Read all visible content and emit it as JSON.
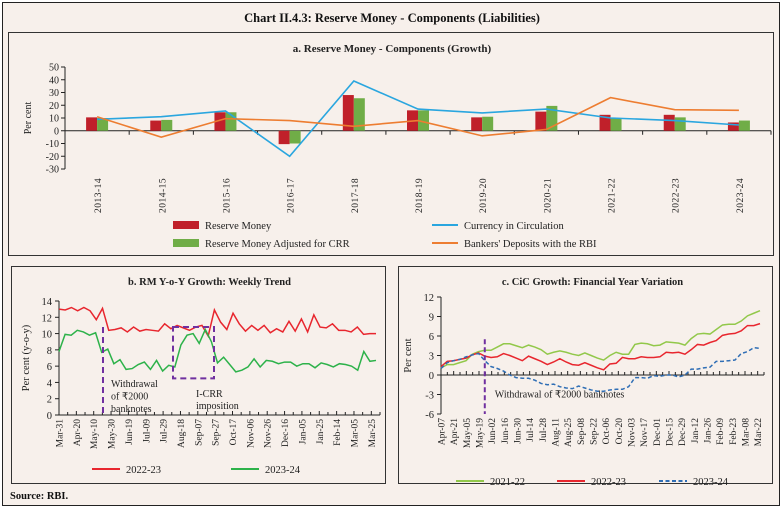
{
  "title": "Chart II.4.3: Reserve Money - Components (Liabilities)",
  "source": "Source: RBI.",
  "chart_data": [
    {
      "type": "bar",
      "title": "a. Reserve Money - Components (Growth)",
      "ylabel": "Per cent",
      "ylim": [
        -30,
        50
      ],
      "yticks": [
        -30,
        -20,
        -10,
        0,
        10,
        20,
        30,
        40,
        50
      ],
      "categories": [
        "2013-14",
        "2014-15",
        "2015-16",
        "2016-17",
        "2017-18",
        "2018-19",
        "2019-20",
        "2020-21",
        "2021-22",
        "2022-23",
        "2023-24"
      ],
      "series": [
        {
          "name": "Reserve Money",
          "kind": "bar",
          "color": "#c0202a",
          "values": [
            10.5,
            8.0,
            14.5,
            -10.5,
            28.0,
            16.0,
            10.5,
            15.0,
            12.5,
            12.5,
            6.5
          ]
        },
        {
          "name": "Reserve Money Adjusted for CRR",
          "kind": "bar",
          "color": "#70ad47",
          "values": [
            10.0,
            8.5,
            14.5,
            -10.0,
            25.5,
            16.0,
            11.0,
            19.5,
            10.0,
            10.5,
            8.0
          ]
        },
        {
          "name": "Currency in Circulation",
          "kind": "line",
          "color": "#2aa6df",
          "values": [
            9.0,
            11.0,
            15.5,
            -20.0,
            39.0,
            17.0,
            14.0,
            17.0,
            10.0,
            8.0,
            4.5
          ]
        },
        {
          "name": "Bankers' Deposits with the RBI",
          "kind": "line",
          "color": "#ed7d31",
          "values": [
            11.0,
            -5.0,
            9.5,
            8.0,
            3.5,
            8.0,
            -4.0,
            1.0,
            26.0,
            16.5,
            16.0
          ]
        }
      ],
      "legend": "bottom"
    },
    {
      "type": "line",
      "title": "b. RM Y-o-Y Growth: Weekly Trend",
      "ylabel": "Per cent (y-o-y)",
      "ylim": [
        0,
        14
      ],
      "yticks": [
        0,
        2,
        4,
        6,
        8,
        10,
        12,
        14
      ],
      "xticklabels": [
        "Mar-31",
        "Apr-20",
        "May-10",
        "May-30",
        "Jun-19",
        "Jul-09",
        "Jul-29",
        "Aug-18",
        "Sep-07",
        "Sep-27",
        "Oct-17",
        "Nov-06",
        "Nov-26",
        "Dec-16",
        "Jan-05",
        "Jan-25",
        "Feb-14",
        "Mar-05",
        "Mar-25"
      ],
      "series": [
        {
          "name": "2022-23",
          "color": "#e8262e",
          "dashed": false,
          "values": [
            13.0,
            12.9,
            13.2,
            12.8,
            13.2,
            12.8,
            11.7,
            13.1,
            10.4,
            10.5,
            10.7,
            10.2,
            10.8,
            10.3,
            10.5,
            10.4,
            10.3,
            11.2,
            10.6,
            11.0,
            10.7,
            10.4,
            10.8,
            11.0,
            9.7,
            12.9,
            11.4,
            10.5,
            12.5,
            11.2,
            10.3,
            11.0,
            10.4,
            11.0,
            10.1,
            10.6,
            10.2,
            11.5,
            10.3,
            11.8,
            10.2,
            12.3,
            10.8,
            10.7,
            11.2,
            10.4,
            10.4,
            10.2,
            10.8,
            9.9,
            10.0,
            10.0
          ]
        },
        {
          "name": "2023-24",
          "color": "#2db24a",
          "dashed": false,
          "values": [
            7.8,
            9.9,
            9.8,
            10.4,
            10.2,
            9.8,
            10.1,
            7.7,
            8.1,
            6.3,
            6.8,
            5.6,
            5.7,
            6.2,
            6.5,
            5.6,
            6.7,
            5.4,
            6.1,
            5.9,
            8.6,
            9.8,
            10.0,
            8.8,
            10.5,
            9.0,
            6.4,
            7.1,
            6.2,
            5.3,
            5.5,
            5.9,
            6.9,
            5.9,
            6.7,
            6.6,
            6.3,
            6.5,
            6.5,
            6.0,
            6.3,
            6.3,
            5.8,
            6.4,
            6.2,
            5.9,
            6.3,
            6.2,
            6.0,
            5.5,
            7.8,
            6.6,
            6.7
          ]
        }
      ],
      "annotations": [
        {
          "type": "dashed-vline",
          "x_label": "May-24",
          "text": "Withdrawal of ₹2000 banknotes"
        },
        {
          "type": "dashed-box",
          "x_range": [
            "Aug-11",
            "Sep-29"
          ],
          "y_range": [
            4.5,
            10.8
          ],
          "text": "I-CRR imposition"
        }
      ],
      "annotation_texts": {
        "withdrawal": [
          "Withdrawal",
          "of ₹2000",
          "banknotes"
        ],
        "icrr": [
          "I-CRR",
          "imposition"
        ]
      },
      "legend": "bottom"
    },
    {
      "type": "line",
      "title": "c. CiC Growth: Financial Year Variation",
      "ylabel": "Per cent",
      "ylim": [
        -6,
        12
      ],
      "yticks": [
        -6,
        -3,
        0,
        3,
        6,
        9,
        12
      ],
      "xticklabels": [
        "Apr-07",
        "Apr-21",
        "May-05",
        "May-19",
        "Jun-02",
        "Jun-16",
        "Jun-30",
        "Jul-14",
        "Jul-28",
        "Aug-11",
        "Aug-25",
        "Sep-08",
        "Sep-22",
        "Oct-06",
        "Oct-20",
        "Nov-03",
        "Nov-17",
        "Dec-01",
        "Dec-15",
        "Dec-29",
        "Jan-12",
        "Jan-26",
        "Feb-09",
        "Feb-23",
        "Mar-08",
        "Mar-22"
      ],
      "series": [
        {
          "name": "2021-22",
          "color": "#92c84a",
          "dashed": false,
          "values": [
            1.1,
            1.6,
            1.6,
            1.9,
            2.2,
            3.2,
            3.6,
            3.8,
            3.8,
            4.3,
            4.8,
            4.8,
            4.5,
            4.2,
            4.6,
            4.3,
            3.9,
            3.2,
            3.5,
            3.7,
            3.5,
            3.2,
            3.0,
            3.4,
            3.0,
            2.6,
            2.3,
            3.0,
            3.5,
            3.2,
            3.2,
            4.7,
            4.9,
            4.8,
            4.5,
            4.6,
            5.1,
            5.0,
            4.9,
            4.6,
            5.6,
            6.3,
            6.4,
            6.3,
            7.0,
            7.7,
            7.8,
            7.8,
            8.3,
            9.1,
            9.5,
            9.9
          ]
        },
        {
          "name": "2022-23",
          "color": "#e8262e",
          "dashed": false,
          "values": [
            1.3,
            2.1,
            2.2,
            2.4,
            2.6,
            3.1,
            3.4,
            2.9,
            2.7,
            2.8,
            3.3,
            3.0,
            2.6,
            2.2,
            2.9,
            2.5,
            2.1,
            1.6,
            2.0,
            2.5,
            2.0,
            1.6,
            1.5,
            1.9,
            1.5,
            1.1,
            0.8,
            1.7,
            1.8,
            2.7,
            2.5,
            2.5,
            2.8,
            2.7,
            2.7,
            2.8,
            3.5,
            3.4,
            3.5,
            3.2,
            3.9,
            4.7,
            4.6,
            5.0,
            5.3,
            6.1,
            6.3,
            6.4,
            6.8,
            7.6,
            7.6,
            7.9
          ]
        },
        {
          "name": "2023-24",
          "color": "#2f6eb5",
          "dashed": true,
          "values": [
            1.0,
            1.9,
            2.2,
            2.4,
            2.8,
            3.1,
            3.3,
            2.2,
            1.3,
            1.0,
            0.6,
            0.0,
            -0.4,
            -0.5,
            -0.5,
            -0.8,
            -1.3,
            -1.5,
            -1.4,
            -1.8,
            -2.0,
            -2.1,
            -1.7,
            -2.0,
            -2.3,
            -2.5,
            -2.5,
            -2.3,
            -2.2,
            -2.2,
            -1.8,
            -0.4,
            -0.4,
            -0.5,
            -0.1,
            -0.2,
            0.0,
            0.0,
            -0.3,
            0.0,
            0.9,
            0.9,
            1.1,
            1.2,
            2.1,
            2.1,
            2.2,
            2.3,
            3.3,
            3.6,
            4.2,
            4.1
          ]
        }
      ],
      "annotations": [
        {
          "type": "dashed-vline",
          "x_label": "May-19",
          "text": "Withdrawal of ₹2000 banknotes"
        }
      ],
      "annotation_texts": {
        "withdrawal": "Withdrawal of ₹2000 banknotes"
      },
      "legend": "bottom"
    }
  ]
}
